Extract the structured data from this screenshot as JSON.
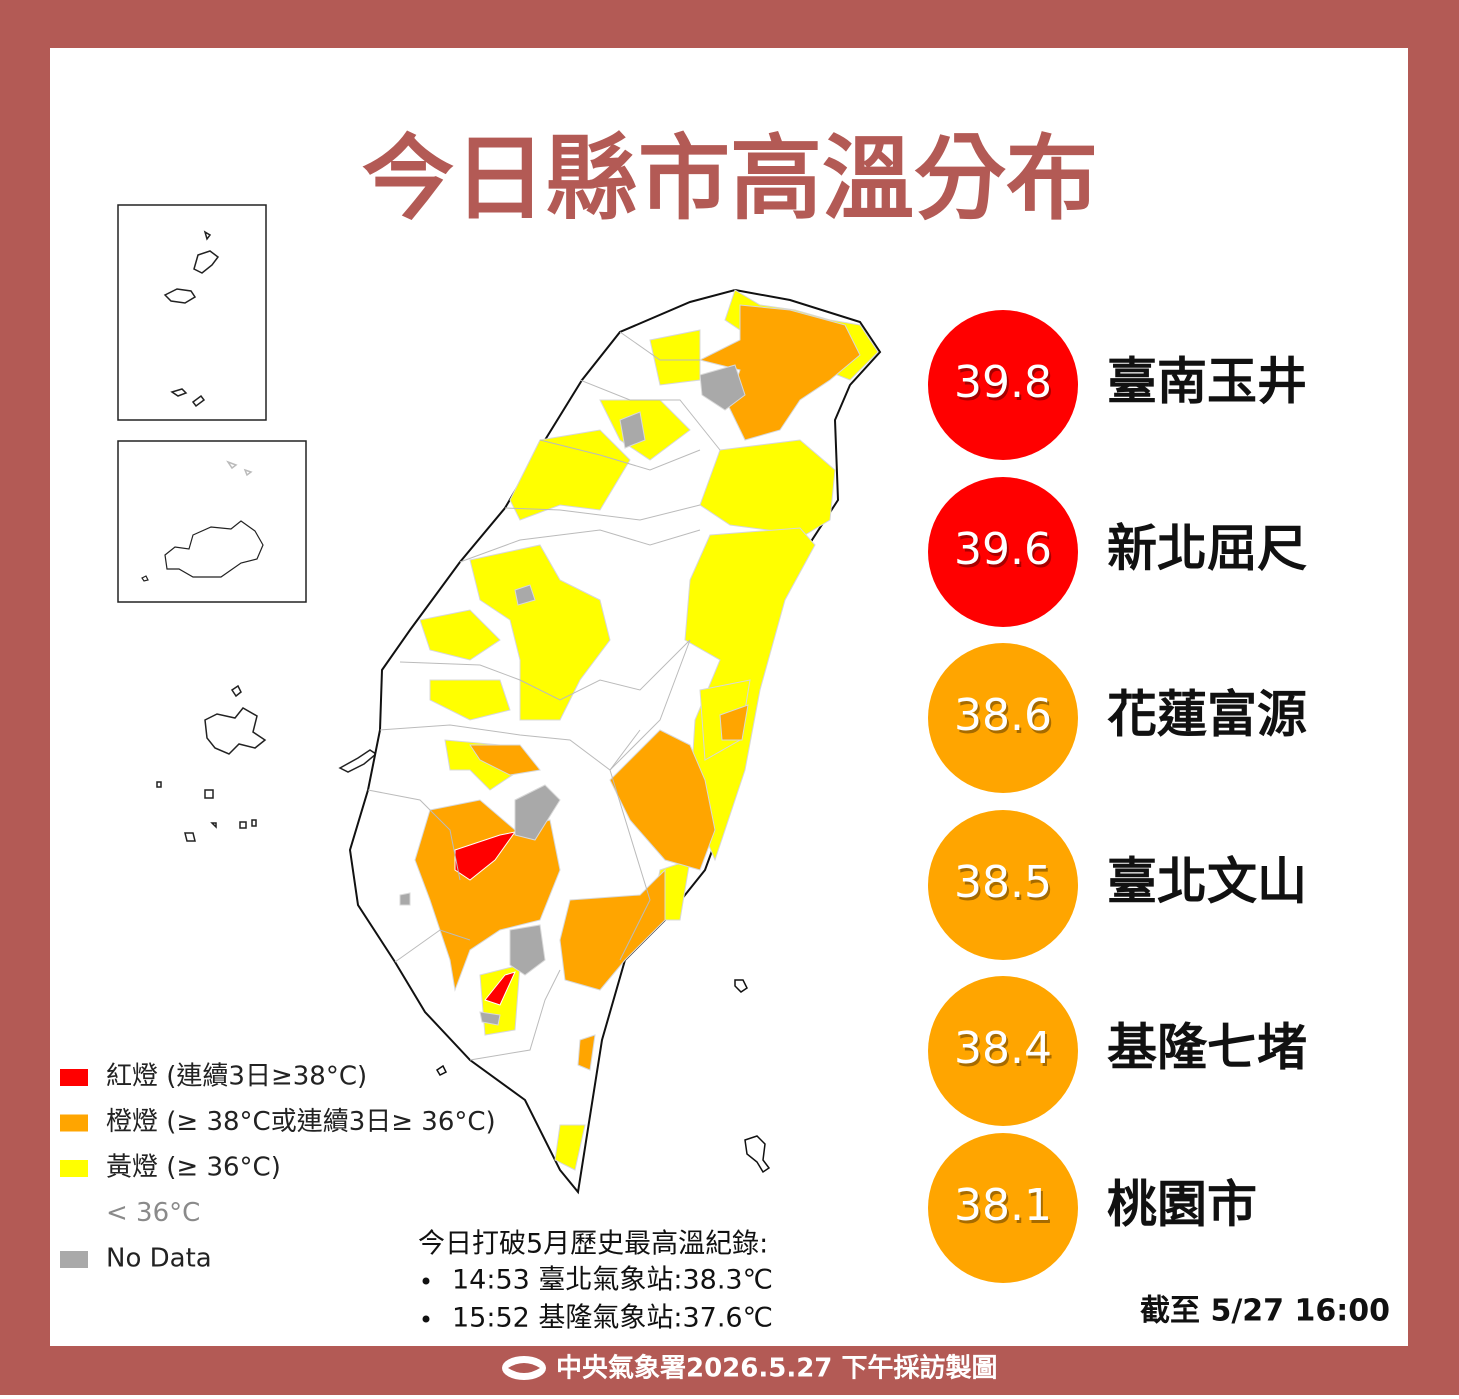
{
  "title": "今日縣市高溫分布",
  "rankings": [
    {
      "value": 39.8,
      "label": "臺南玉井",
      "color": "#ff0000"
    },
    {
      "value": 39.6,
      "label": "新北屈尺",
      "color": "#ff0000"
    },
    {
      "value": 38.6,
      "label": "花蓮富源",
      "color": "#ffa500"
    },
    {
      "value": 38.5,
      "label": "臺北文山",
      "color": "#ffa500"
    },
    {
      "value": 38.4,
      "label": "基隆七堵",
      "color": "#ffa500"
    },
    {
      "value": 38.1,
      "label": "桃園市",
      "color": "#ffa500"
    }
  ],
  "legend": [
    {
      "label": "紅燈 (連續3日≥38°C)",
      "color": "#ff0000"
    },
    {
      "label": "橙燈 (≥ 38°C或連續3日≥ 36°C)",
      "color": "#ffa500"
    },
    {
      "label": "黃燈 (≥ 36°C)",
      "color": "#ffff00"
    },
    {
      "label": "< 36°C",
      "color": "#ffffff"
    },
    {
      "label": "No Data",
      "color": "#a9a9a9"
    }
  ],
  "records": {
    "heading": "今日打破5月歷史最高溫紀錄:",
    "items": [
      "14:53  臺北氣象站:38.3℃",
      "15:52  基隆氣象站:37.6℃"
    ]
  },
  "as_of": "截至 5/27 16:00",
  "footer": "中央氣象署2026.5.27 下午採訪製圖"
}
